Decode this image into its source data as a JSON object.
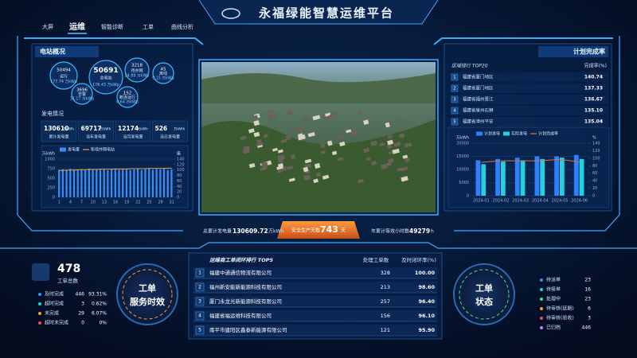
{
  "header": {
    "title": "永福绿能智慧运维平台",
    "nav": [
      "大屏",
      "运维",
      "智能诊断",
      "工单",
      "曲线分析"
    ],
    "active_nav": 1
  },
  "station": {
    "title": "电站概况",
    "bubbles": [
      {
        "value": 50494,
        "label": "运行",
        "capacity": "177.74 万kWp"
      },
      {
        "value": 50691,
        "label": "总电站",
        "capacity": "178.43 万kWp"
      },
      {
        "value": 3218,
        "label": "待并网",
        "capacity": "24.89 万kWp"
      },
      {
        "value": 45,
        "label": "离线",
        "capacity": "0.15 万kWp"
      },
      {
        "value": 3696,
        "label": "告警",
        "capacity": "31.17 万kWp"
      },
      {
        "value": 152,
        "label": "断连运行",
        "capacity": "0.64 万kWp"
      }
    ]
  },
  "generation": {
    "title": "发电情况",
    "stats": [
      {
        "value": 130610,
        "unit": "万kWh",
        "label": "累计发电量"
      },
      {
        "value": 69717,
        "unit": "万kWh",
        "label": "当年发电量"
      },
      {
        "value": 12174,
        "unit": "万kWh",
        "label": "当月发电量"
      },
      {
        "value": 526,
        "unit": "万kWh",
        "label": "当日发电量"
      }
    ],
    "chart": {
      "type": "combo",
      "y_label": "万kWh",
      "y2_label": "座",
      "grid": true,
      "categories": [
        1,
        null,
        null,
        4,
        null,
        null,
        7,
        null,
        null,
        10,
        null,
        null,
        13,
        null,
        null,
        16,
        null,
        null,
        19,
        null,
        null,
        22,
        null,
        null,
        25,
        null,
        null,
        28,
        null,
        null,
        31
      ],
      "series": [
        {
          "name": "发电量",
          "type": "bar",
          "color": "#3a8ef5",
          "values": [
            720,
            735,
            710,
            745,
            730,
            715,
            740,
            725,
            750,
            735,
            720,
            745,
            730,
            710,
            740,
            755,
            725,
            735,
            745,
            720,
            730,
            740,
            715,
            735,
            750,
            725,
            740,
            730,
            745,
            720,
            735
          ]
        },
        {
          "name": "新增并网电站",
          "type": "line",
          "axis": "y2",
          "color": "#f0a040",
          "values": [
            98,
            99,
            99,
            100,
            100,
            101,
            101,
            101,
            102,
            102,
            102,
            103,
            103,
            103,
            103,
            104,
            104,
            104,
            104,
            105,
            105,
            105,
            105,
            105,
            106,
            106,
            106,
            106,
            106,
            107,
            107
          ]
        }
      ],
      "ylim": [
        0,
        1000
      ],
      "yticks": [
        0,
        250,
        500,
        750,
        1000
      ],
      "y2lim": [
        0,
        140
      ],
      "y2ticks": [
        0,
        20,
        40,
        60,
        80,
        100,
        120,
        140
      ]
    }
  },
  "summary": {
    "total_label": "总累计发电量",
    "total_value": 130609.72,
    "total_unit": "万kWh",
    "safety_label": "安全生产天数",
    "safety_value": 743,
    "safety_unit": "天",
    "hours_label": "年累计等效小时数",
    "hours_value": 49279,
    "hours_unit": "h"
  },
  "plan": {
    "title": "计划完成率",
    "ranking_title": "区域排行 TOP20",
    "ranking_header": "完成率(%)",
    "ranking": [
      {
        "rank": 1,
        "name": "福建省厦门地区",
        "value": "140.74"
      },
      {
        "rank": 2,
        "name": "福建省厦门地区",
        "value": "137.33"
      },
      {
        "rank": 3,
        "name": "福建省福州晋江",
        "value": "136.67"
      },
      {
        "rank": 4,
        "name": "福建省泉州石狮",
        "value": "135.10"
      },
      {
        "rank": 5,
        "name": "福建省漳州平安",
        "value": "135.04"
      }
    ],
    "chart": {
      "type": "combo",
      "y_label": "万kWh",
      "y2_label": "%",
      "grid": true,
      "categories": [
        "2024-01",
        "2024-02",
        "2024-03",
        "2024-04",
        "2024-05",
        "2024-06"
      ],
      "series": [
        {
          "name": "计划发电",
          "type": "bar",
          "color": "#2f7fff",
          "values": [
            13500,
            14000,
            14500,
            15000,
            15000,
            15500
          ]
        },
        {
          "name": "实际发电",
          "type": "bar",
          "color": "#22d0e0",
          "values": [
            12000,
            13000,
            13500,
            14000,
            14500,
            14000
          ]
        },
        {
          "name": "计划完成率",
          "type": "line",
          "axis": "y2",
          "color": "#e07040",
          "values": [
            89,
            93,
            93,
            93,
            97,
            90
          ]
        }
      ],
      "ylim": [
        0,
        20000
      ],
      "yticks": [
        0,
        5000,
        10000,
        15000,
        20000
      ],
      "y2lim": [
        0,
        140
      ],
      "y2ticks": [
        0,
        20,
        40,
        60,
        80,
        100,
        120,
        140
      ]
    }
  },
  "tickets": {
    "total": 478,
    "total_label": "工单总数",
    "gauge": [
      "工单",
      "服务时效"
    ],
    "items": [
      {
        "label": "及时完成",
        "count": 446,
        "percent": "93.31%",
        "color": "#3a8ef5"
      },
      {
        "label": "超时完成",
        "count": 3,
        "percent": "0.62%",
        "color": "#22d0e0"
      },
      {
        "label": "未完成",
        "count": 29,
        "percent": "6.07%",
        "color": "#f0a040"
      },
      {
        "label": "超时未完成",
        "count": 0,
        "percent": "0%",
        "color": "#e05050"
      }
    ]
  },
  "vendors": {
    "title": "运维商工单闭环排行 TOP5",
    "headers": [
      "处理工单数",
      "及时闭环率(%)"
    ],
    "rows": [
      {
        "rank": 1,
        "name": "福建中通通信物流有限公司",
        "count": 328,
        "rate": "100.00"
      },
      {
        "rank": 2,
        "name": "福州新安能新能源科技有限公司",
        "count": 213,
        "rate": "98.60"
      },
      {
        "rank": 3,
        "name": "厦门永龙光新能源科技有限公司",
        "count": 257,
        "rate": "96.40"
      },
      {
        "rank": 4,
        "name": "福建省福运维科技有限公司",
        "count": 156,
        "rate": "96.10"
      },
      {
        "rank": 5,
        "name": "南平市建阳区鑫泰新能源有限公司",
        "count": 121,
        "rate": "95.90"
      }
    ]
  },
  "status": {
    "gauge": [
      "工单",
      "状态"
    ],
    "items": [
      {
        "label": "待派单",
        "count": 23,
        "color": "#3a8ef5"
      },
      {
        "label": "待接单",
        "count": 16,
        "color": "#22d0e0"
      },
      {
        "label": "处理中",
        "count": 23,
        "color": "#40e090"
      },
      {
        "label": "待审核(延期)",
        "count": 6,
        "color": "#f0a040"
      },
      {
        "label": "待审核(验收)",
        "count": 3,
        "color": "#e05050"
      },
      {
        "label": "已归档",
        "count": 446,
        "color": "#c080ff"
      }
    ]
  }
}
